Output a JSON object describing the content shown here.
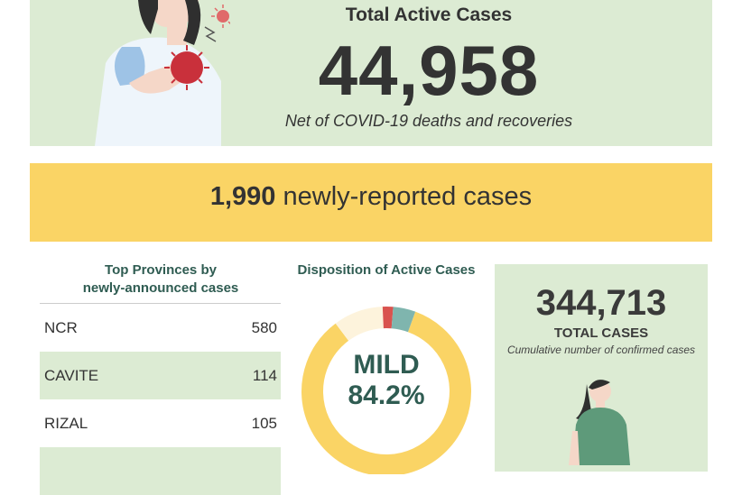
{
  "active": {
    "title": "Total Active Cases",
    "number": "44,958",
    "subtitle": "Net of COVID-19 deaths and recoveries"
  },
  "new_cases": {
    "count": "1,990",
    "label": " newly-reported cases"
  },
  "provinces": {
    "title_line1": "Top Provinces by",
    "title_line2": "newly-announced cases",
    "rows": [
      {
        "name": "NCR",
        "value": "580"
      },
      {
        "name": "CAVITE",
        "value": "114"
      },
      {
        "name": "RIZAL",
        "value": "105"
      }
    ]
  },
  "disposition": {
    "title": "Disposition of Active Cases",
    "center_label": "MILD",
    "center_value": "84.2%",
    "segments_pct": [
      {
        "key": "mild",
        "value": 84.2,
        "color": "#fad465"
      },
      {
        "key": "asymptomatic",
        "value": 9.5,
        "color": "#fdf3dc"
      },
      {
        "key": "severe",
        "value": 2.0,
        "color": "#d9534f"
      },
      {
        "key": "critical",
        "value": 4.3,
        "color": "#7fb5ae"
      }
    ]
  },
  "total": {
    "number": "344,713",
    "label": "TOTAL CASES",
    "subtitle": "Cumulative number of confirmed cases"
  },
  "colors": {
    "green_panel": "#dcebd3",
    "yellow_banner": "#fad465",
    "heading_green": "#2f5c52"
  }
}
